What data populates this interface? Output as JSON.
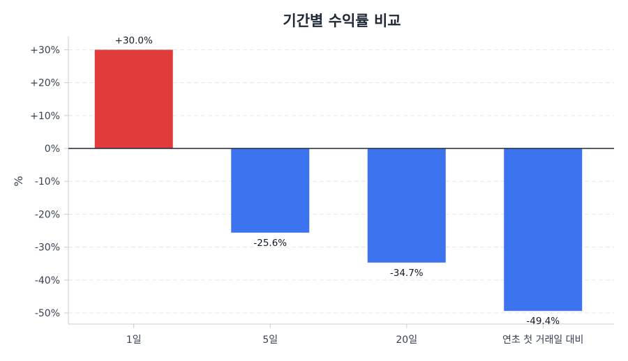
{
  "chart_data": {
    "type": "bar",
    "title": "기간별 수익률 비교",
    "xlabel": "",
    "ylabel": "%",
    "categories": [
      "1일",
      "5일",
      "20일",
      "연초 첫 거래일 대비"
    ],
    "values": [
      30.0,
      -25.6,
      -34.7,
      -49.4
    ],
    "value_labels": [
      "+30.0%",
      "-25.6%",
      "-34.7%",
      "-49.4%"
    ],
    "ylim": [
      -53.5,
      33.5
    ],
    "yticks": [
      30,
      20,
      10,
      0,
      -10,
      -20,
      -30,
      -40,
      -50
    ],
    "ytick_labels": [
      "+30%",
      "+20%",
      "+10%",
      "0%",
      "-10%",
      "-20%",
      "-30%",
      "-40%",
      "-50%"
    ],
    "grid": true,
    "legend": "none",
    "colors": {
      "positive": "#e03c3c",
      "negative": "#3b74ee",
      "zero_line": "#1f2937",
      "grid": "#e5e7eb",
      "axis": "#c8ccd2"
    }
  }
}
